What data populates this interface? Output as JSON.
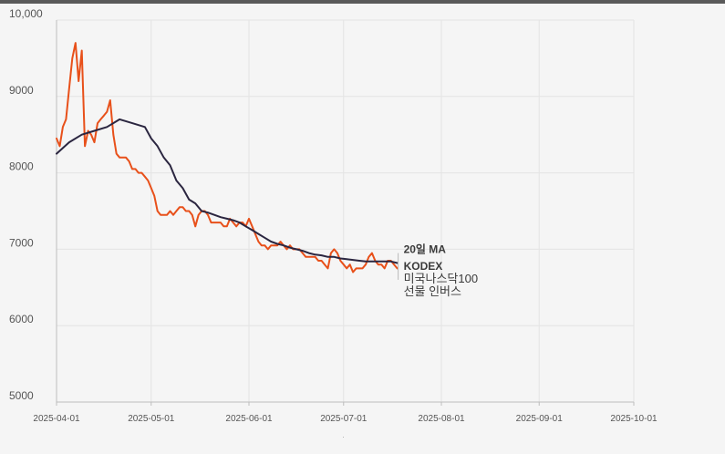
{
  "chart_data": {
    "type": "line",
    "title": "",
    "xlabel": "",
    "ylabel": "",
    "ylim": [
      5000,
      10000
    ],
    "yticks": [
      "10,000",
      "9000",
      "8000",
      "7000",
      "6000",
      "5000"
    ],
    "ytick_values": [
      10000,
      9000,
      8000,
      7000,
      6000,
      5000
    ],
    "xticks": [
      "2025-04-01",
      "2025-05-01",
      "2025-06-01",
      "2025-07-01",
      "2025-08-01",
      "2025-09-01",
      "2025-10-01"
    ],
    "xtick_days": [
      0,
      30,
      61,
      91,
      122,
      153,
      183
    ],
    "series": [
      {
        "name": "KODEX 미국나스닥100 선물 인버스",
        "color": "#e8501a",
        "label_lines": [
          "KODEX",
          "미국나스닥100",
          "선물 인버스"
        ],
        "points": [
          [
            0,
            8450
          ],
          [
            1,
            8350
          ],
          [
            2,
            8600
          ],
          [
            3,
            8700
          ],
          [
            4,
            9100
          ],
          [
            5,
            9500
          ],
          [
            6,
            9700
          ],
          [
            7,
            9200
          ],
          [
            8,
            9600
          ],
          [
            9,
            8350
          ],
          [
            10,
            8550
          ],
          [
            11,
            8500
          ],
          [
            12,
            8400
          ],
          [
            13,
            8650
          ],
          [
            14,
            8700
          ],
          [
            15,
            8750
          ],
          [
            16,
            8800
          ],
          [
            17,
            8950
          ],
          [
            18,
            8500
          ],
          [
            19,
            8250
          ],
          [
            20,
            8200
          ],
          [
            21,
            8200
          ],
          [
            22,
            8200
          ],
          [
            23,
            8150
          ],
          [
            24,
            8050
          ],
          [
            25,
            8050
          ],
          [
            26,
            8000
          ],
          [
            27,
            8000
          ],
          [
            28,
            7950
          ],
          [
            29,
            7900
          ],
          [
            30,
            7800
          ],
          [
            31,
            7700
          ],
          [
            32,
            7500
          ],
          [
            33,
            7450
          ],
          [
            34,
            7450
          ],
          [
            35,
            7450
          ],
          [
            36,
            7500
          ],
          [
            37,
            7450
          ],
          [
            38,
            7500
          ],
          [
            39,
            7550
          ],
          [
            40,
            7550
          ],
          [
            41,
            7500
          ],
          [
            42,
            7500
          ],
          [
            43,
            7450
          ],
          [
            44,
            7300
          ],
          [
            45,
            7450
          ],
          [
            46,
            7500
          ],
          [
            47,
            7500
          ],
          [
            48,
            7450
          ],
          [
            49,
            7350
          ],
          [
            50,
            7350
          ],
          [
            51,
            7350
          ],
          [
            52,
            7350
          ],
          [
            53,
            7300
          ],
          [
            54,
            7300
          ],
          [
            55,
            7400
          ],
          [
            56,
            7350
          ],
          [
            57,
            7300
          ],
          [
            58,
            7350
          ],
          [
            59,
            7350
          ],
          [
            60,
            7300
          ],
          [
            61,
            7400
          ],
          [
            62,
            7300
          ],
          [
            63,
            7200
          ],
          [
            64,
            7100
          ],
          [
            65,
            7050
          ],
          [
            66,
            7050
          ],
          [
            67,
            7000
          ],
          [
            68,
            7050
          ],
          [
            69,
            7050
          ],
          [
            70,
            7050
          ],
          [
            71,
            7100
          ],
          [
            72,
            7050
          ],
          [
            73,
            7000
          ],
          [
            74,
            7050
          ],
          [
            75,
            7000
          ],
          [
            76,
            7000
          ],
          [
            77,
            7000
          ],
          [
            78,
            6950
          ],
          [
            79,
            6900
          ],
          [
            80,
            6900
          ],
          [
            81,
            6900
          ],
          [
            82,
            6900
          ],
          [
            83,
            6850
          ],
          [
            84,
            6850
          ],
          [
            85,
            6800
          ],
          [
            86,
            6750
          ],
          [
            87,
            6950
          ],
          [
            88,
            7000
          ],
          [
            89,
            6950
          ],
          [
            90,
            6850
          ],
          [
            91,
            6800
          ],
          [
            92,
            6750
          ],
          [
            93,
            6800
          ],
          [
            94,
            6700
          ],
          [
            95,
            6750
          ],
          [
            96,
            6750
          ],
          [
            97,
            6750
          ],
          [
            98,
            6800
          ],
          [
            99,
            6900
          ],
          [
            100,
            6950
          ],
          [
            101,
            6850
          ],
          [
            102,
            6800
          ],
          [
            103,
            6800
          ],
          [
            104,
            6750
          ],
          [
            105,
            6850
          ],
          [
            106,
            6850
          ],
          [
            107,
            6800
          ],
          [
            108,
            6750
          ]
        ]
      },
      {
        "name": "20일 MA",
        "color": "#2b2640",
        "label_lines": [
          "20일 MA"
        ],
        "points": [
          [
            0,
            8250
          ],
          [
            4,
            8400
          ],
          [
            8,
            8500
          ],
          [
            12,
            8550
          ],
          [
            16,
            8600
          ],
          [
            20,
            8700
          ],
          [
            24,
            8650
          ],
          [
            28,
            8600
          ],
          [
            30,
            8450
          ],
          [
            32,
            8350
          ],
          [
            34,
            8200
          ],
          [
            36,
            8100
          ],
          [
            38,
            7900
          ],
          [
            40,
            7800
          ],
          [
            42,
            7650
          ],
          [
            44,
            7600
          ],
          [
            46,
            7500
          ],
          [
            48,
            7480
          ],
          [
            50,
            7450
          ],
          [
            52,
            7420
          ],
          [
            54,
            7400
          ],
          [
            56,
            7380
          ],
          [
            58,
            7350
          ],
          [
            60,
            7300
          ],
          [
            62,
            7250
          ],
          [
            64,
            7200
          ],
          [
            66,
            7150
          ],
          [
            68,
            7100
          ],
          [
            70,
            7070
          ],
          [
            72,
            7050
          ],
          [
            74,
            7020
          ],
          [
            76,
            7000
          ],
          [
            78,
            6980
          ],
          [
            80,
            6950
          ],
          [
            82,
            6930
          ],
          [
            84,
            6920
          ],
          [
            86,
            6900
          ],
          [
            88,
            6900
          ],
          [
            90,
            6880
          ],
          [
            92,
            6870
          ],
          [
            94,
            6860
          ],
          [
            96,
            6850
          ],
          [
            98,
            6840
          ],
          [
            100,
            6840
          ],
          [
            102,
            6840
          ],
          [
            104,
            6840
          ],
          [
            106,
            6840
          ],
          [
            108,
            6820
          ]
        ]
      }
    ]
  }
}
